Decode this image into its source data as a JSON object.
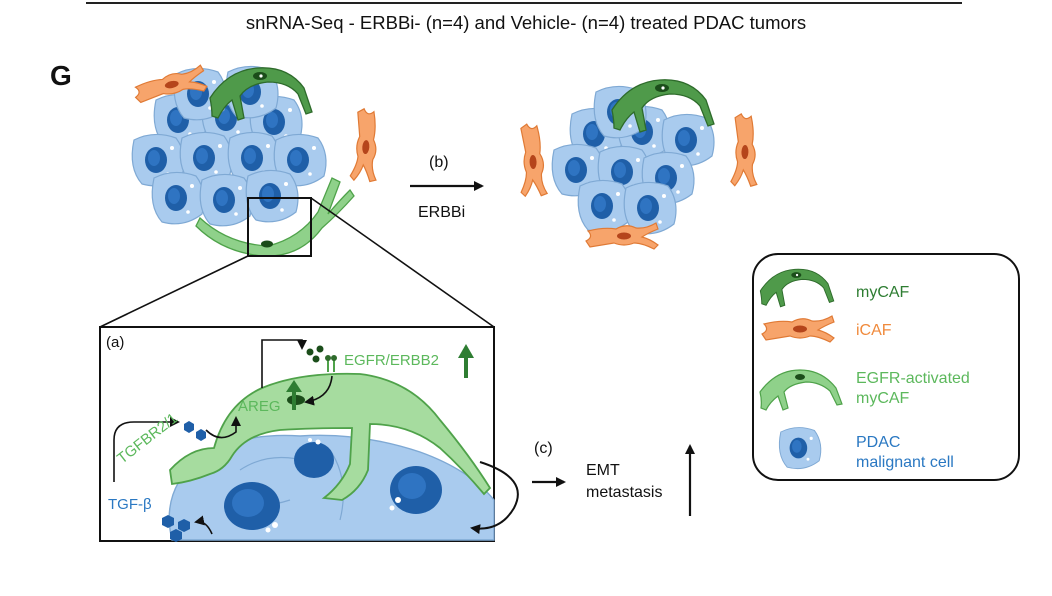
{
  "header": {
    "title": "snRNA-Seq - ERBBi- (n=4) and Vehicle- (n=4) treated PDAC tumors",
    "panel_letter": "G"
  },
  "arrow_b": {
    "tag": "(b)",
    "label": "ERBBi"
  },
  "inset": {
    "tag": "(a)",
    "egfr_erbb2": "EGFR/ERBB2",
    "areg": "AREG",
    "tgfbr": "TGFBR2/1",
    "tgfb": "TGF-β"
  },
  "arrow_c": {
    "tag": "(c)",
    "line1": "EMT",
    "line2": "metastasis"
  },
  "legend": {
    "items": [
      {
        "name": "myCAF",
        "line1": "myCAF",
        "line2": "",
        "color": "#2e7d32",
        "icon": "mycaf-icon"
      },
      {
        "name": "iCAF",
        "line1": "iCAF",
        "line2": "",
        "color": "#f08a3c",
        "icon": "icaf-icon"
      },
      {
        "name": "EGFR-activated myCAF",
        "line1": "EGFR-activated",
        "line2": "myCAF",
        "color": "#5cb85c",
        "icon": "egfr-mycaf-icon"
      },
      {
        "name": "PDAC malignant cell",
        "line1": "PDAC",
        "line2": "malignant cell",
        "color": "#2a78c2",
        "icon": "pdac-cell-icon"
      }
    ]
  },
  "colors": {
    "mycaf": "#2e7d32",
    "icaf": "#f08a3c",
    "egfr_mycaf": "#8fd18a",
    "pdac_light": "#a9cbee",
    "pdac_dark": "#1f5fa8"
  }
}
